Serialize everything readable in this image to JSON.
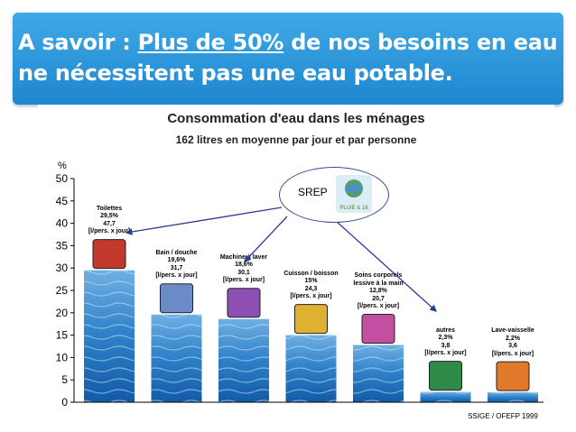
{
  "headline": {
    "prefix": "A savoir :",
    "highlight": "Plus de 50%",
    "rest": " de nos besoins en eau ne nécessitent pas une eau potable."
  },
  "callout": {
    "label": "SREP",
    "logo_text": "PLUIE & 16"
  },
  "chart_data": {
    "type": "bar",
    "title": "Consommation d'eau dans les ménages",
    "subtitle": "162 litres en moyenne par jour et par personne",
    "ylabel": "%",
    "ylim": [
      0,
      50
    ],
    "yticks": [
      0,
      5,
      10,
      15,
      20,
      25,
      30,
      35,
      40,
      45,
      50
    ],
    "source": "SSIGE / OFEFP 1999",
    "categories": [
      "Toilettes",
      "Bain / douche",
      "Machine à laver",
      "Cuisson / boisson",
      "Soins corporels lessive à la main",
      "autres",
      "Lave-vaisselle"
    ],
    "values": [
      29.5,
      19.6,
      18.6,
      15,
      12.8,
      2.3,
      2.2
    ],
    "annotations": [
      [
        "Toilettes",
        "29,5%",
        "47,7",
        "[l/pers. x jour]"
      ],
      [
        "Bain / douche",
        "19,6%",
        "31,7",
        "[l/pers. x jour]"
      ],
      [
        "Machine à laver",
        "18,6%",
        "30,1",
        "[l/pers. x jour]"
      ],
      [
        "Cuisson / boisson",
        "15%",
        "24,3",
        "[l/pers. x jour]"
      ],
      [
        "Soins corporels",
        "lessive à la main",
        "12,8%",
        "20,7",
        "[l/pers. x jour]"
      ],
      [
        "autres",
        "2,3%",
        "3,8",
        "[l/pers. x jour]"
      ],
      [
        "Lave-vaisselle",
        "2,2%",
        "3,6",
        "[l/pers. x jour]"
      ]
    ]
  }
}
